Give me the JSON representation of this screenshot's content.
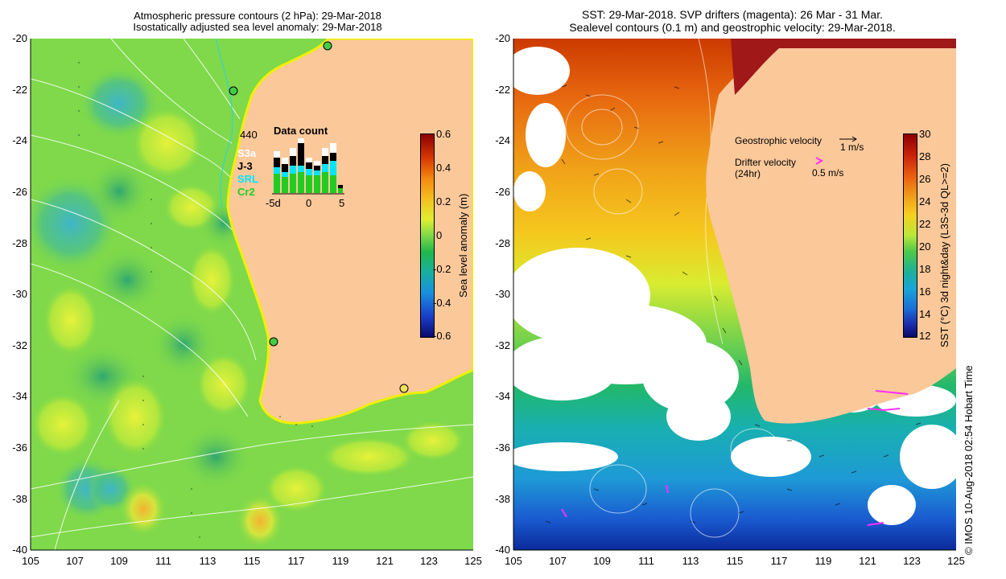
{
  "left_panel": {
    "title_line1": "Atmospheric pressure contours (2 hPa): 29-Mar-2018",
    "title_line2": "Isostatically adjusted sea level anomaly: 29-Mar-2018",
    "colorbar_label": "Sea level anomaly (m)",
    "colorbar_ticks": [
      "0.6",
      "0.4",
      "0.2",
      "0",
      "-0.2",
      "-0.4",
      "-0.6"
    ],
    "data_count": {
      "title": "Data count",
      "max_value": "440",
      "satellites": [
        "S3a",
        "J-3",
        "SRL",
        "Cr2"
      ],
      "satellite_colors": [
        "#ffffff",
        "#000000",
        "#00e5ff",
        "#22cc22"
      ],
      "x_ticks": [
        "-5d",
        "0",
        "5"
      ]
    }
  },
  "right_panel": {
    "title_line1": "SST: 29-Mar-2018. SVP drifters (magenta): 26 Mar - 31 Mar.",
    "title_line2": "Sealevel contours (0.1 m) and geostrophic velocity: 29-Mar-2018.",
    "colorbar_label": "SST (°C) 3d night&day (L3S-3d QL>=2)",
    "colorbar_ticks": [
      "30",
      "28",
      "26",
      "24",
      "22",
      "20",
      "18",
      "16",
      "14",
      "12"
    ],
    "geostrophic_label": "Geostrophic velocity",
    "geostrophic_scale": "1 m/s",
    "drifter_label_1": "Drifter velocity",
    "drifter_label_2": "(24hr)",
    "drifter_scale": "0.5 m/s"
  },
  "axes": {
    "y_ticks": [
      "-20",
      "-22",
      "-24",
      "-26",
      "-28",
      "-30",
      "-32",
      "-34",
      "-36",
      "-38",
      "-40"
    ],
    "x_ticks": [
      "105",
      "107",
      "109",
      "111",
      "113",
      "115",
      "117",
      "119",
      "121",
      "123",
      "125"
    ]
  },
  "credit": "© IMOS 10-Aug-2018 02:54 Hobart Time",
  "colors": {
    "land": "#fbc89a",
    "sla_background": "#7fd94a",
    "sst_warm": "#cc3a00",
    "sst_mid": "#f0a018",
    "sst_cool": "#1e9ad6",
    "drifter": "#ff2cff"
  }
}
